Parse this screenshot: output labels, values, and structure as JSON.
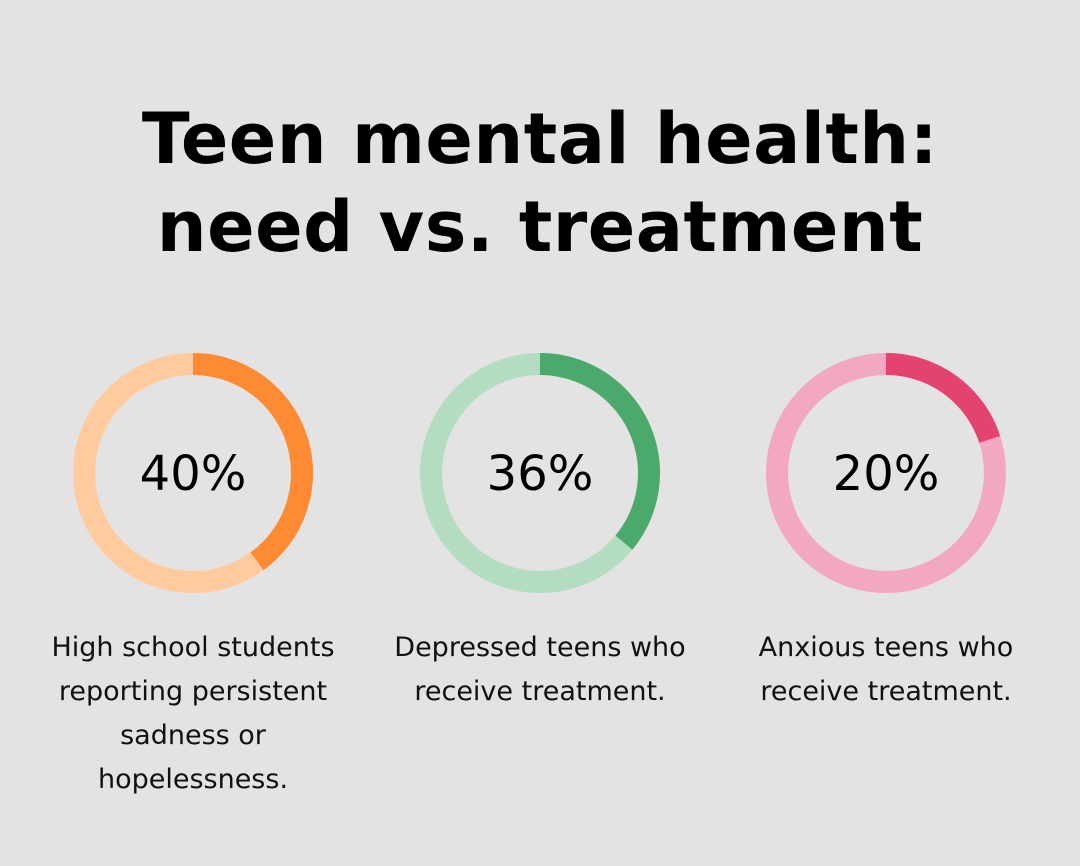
{
  "title": "Teen mental health: need vs. treatment",
  "chart_data": {
    "type": "pie",
    "items": [
      {
        "value": 40,
        "label": "40%",
        "caption": "High school students reporting persistent sadness or hopelessness.",
        "colors": {
          "fill": "#fe8b33",
          "track": "#ffcb9e"
        }
      },
      {
        "value": 36,
        "label": "36%",
        "caption": "Depressed teens who receive treatment.",
        "colors": {
          "fill": "#4ba96c",
          "track": "#b4dcc1"
        }
      },
      {
        "value": 20,
        "label": "20%",
        "caption": "Anxious teens who receive treatment.",
        "colors": {
          "fill": "#e4426f",
          "track": "#f2a8bf"
        }
      }
    ]
  }
}
